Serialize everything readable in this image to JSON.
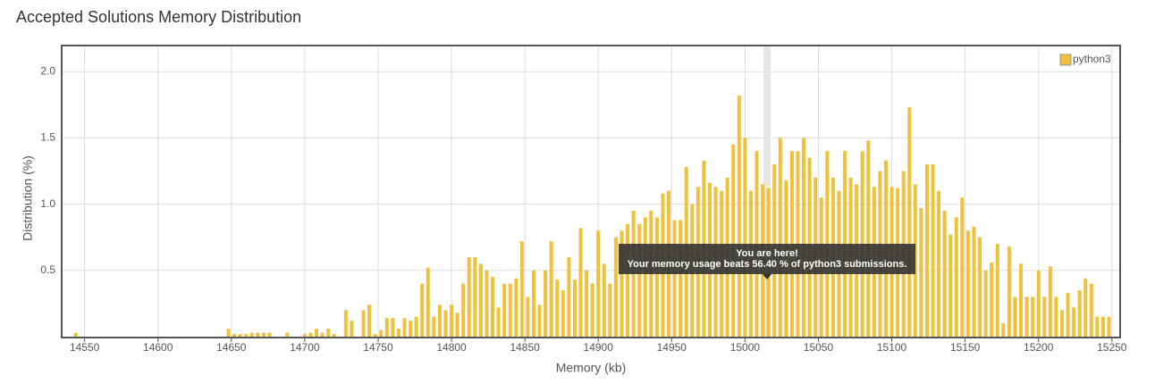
{
  "chart_data": {
    "type": "bar",
    "title": "Accepted Solutions Memory Distribution",
    "x_label": "Memory (kb)",
    "y_label": "Distribution (%)",
    "xlim": [
      14535,
      15255
    ],
    "ylim": [
      0,
      2.19
    ],
    "xticks": [
      14550,
      14600,
      14650,
      14700,
      14750,
      14800,
      14850,
      14900,
      14950,
      15000,
      15050,
      15100,
      15150,
      15200,
      15250
    ],
    "yticks": [
      0.5,
      {
        "value": 1,
        "label": "1.0"
      },
      1.5,
      {
        "value": 2,
        "label": "2.0"
      }
    ],
    "grid": true,
    "legend": "top-right",
    "series": [
      {
        "name": "python3",
        "color": "#efc13d",
        "x": [
          14544,
          14548,
          14552,
          14556,
          14560,
          14564,
          14568,
          14572,
          14576,
          14580,
          14584,
          14588,
          14592,
          14596,
          14600,
          14604,
          14608,
          14612,
          14616,
          14620,
          14624,
          14628,
          14632,
          14636,
          14640,
          14644,
          14648,
          14652,
          14656,
          14660,
          14664,
          14668,
          14672,
          14676,
          14680,
          14684,
          14688,
          14692,
          14696,
          14700,
          14704,
          14708,
          14712,
          14716,
          14720,
          14724,
          14728,
          14732,
          14736,
          14740,
          14744,
          14748,
          14752,
          14756,
          14760,
          14764,
          14768,
          14772,
          14776,
          14780,
          14784,
          14788,
          14792,
          14796,
          14800,
          14804,
          14808,
          14812,
          14816,
          14820,
          14824,
          14828,
          14832,
          14836,
          14840,
          14844,
          14848,
          14852,
          14856,
          14860,
          14864,
          14868,
          14872,
          14876,
          14880,
          14884,
          14888,
          14892,
          14896,
          14900,
          14904,
          14908,
          14912,
          14916,
          14920,
          14924,
          14928,
          14932,
          14936,
          14940,
          14944,
          14948,
          14952,
          14956,
          14960,
          14964,
          14968,
          14972,
          14976,
          14980,
          14984,
          14988,
          14992,
          14996,
          15000,
          15004,
          15008,
          15012,
          15016,
          15020,
          15024,
          15028,
          15032,
          15036,
          15040,
          15044,
          15048,
          15052,
          15056,
          15060,
          15064,
          15068,
          15072,
          15076,
          15080,
          15084,
          15088,
          15092,
          15096,
          15100,
          15104,
          15108,
          15112,
          15116,
          15120,
          15124,
          15128,
          15132,
          15136,
          15140,
          15144,
          15148,
          15152,
          15156,
          15160,
          15164,
          15168,
          15172,
          15176,
          15180,
          15184,
          15188,
          15192,
          15196,
          15200,
          15204,
          15208,
          15212,
          15216,
          15220,
          15224,
          15228,
          15232,
          15236,
          15240,
          15244,
          15248
        ],
        "values": [
          0.03,
          0,
          0,
          0,
          0,
          0,
          0,
          0,
          0,
          0,
          0,
          0,
          0,
          0,
          0,
          0,
          0,
          0,
          0,
          0,
          0,
          0,
          0,
          0,
          0,
          0,
          0.06,
          0.02,
          0.02,
          0.02,
          0.03,
          0.03,
          0.03,
          0.03,
          0,
          0,
          0.03,
          0,
          0,
          0.02,
          0.03,
          0.06,
          0.03,
          0.06,
          0.02,
          0,
          0.2,
          0.12,
          0,
          0.2,
          0.24,
          0.02,
          0.05,
          0.14,
          0.14,
          0.06,
          0.14,
          0.12,
          0.15,
          0.4,
          0.52,
          0.15,
          0.24,
          0.2,
          0.24,
          0.18,
          0.4,
          0.6,
          0.6,
          0.55,
          0.5,
          0.45,
          0.22,
          0.4,
          0.4,
          0.44,
          0.72,
          0.3,
          0.5,
          0.24,
          0.5,
          0.72,
          0.43,
          0.35,
          0.6,
          0.43,
          0.82,
          0.5,
          0.4,
          0.8,
          0.55,
          0.4,
          0.75,
          0.8,
          0.85,
          0.95,
          0.85,
          0.9,
          0.95,
          0.9,
          1.08,
          1.1,
          0.88,
          0.88,
          1.28,
          1.0,
          1.13,
          1.33,
          1.16,
          1.13,
          1.1,
          1.2,
          1.45,
          1.82,
          1.5,
          1.1,
          1.4,
          1.15,
          1.12,
          1.3,
          1.5,
          1.18,
          1.4,
          1.4,
          1.5,
          1.35,
          1.2,
          1.05,
          1.4,
          1.2,
          1.1,
          1.4,
          1.2,
          1.15,
          1.4,
          1.48,
          1.13,
          1.25,
          1.33,
          1.13,
          1.12,
          1.25,
          1.73,
          1.15,
          0.97,
          1.3,
          1.3,
          1.1,
          0.95,
          0.77,
          0.9,
          1.05,
          0.8,
          0.83,
          0.75,
          0.5,
          0.56,
          0.7,
          0.1,
          0.68,
          0.3,
          0.55,
          0.3,
          0.3,
          0.5,
          0.3,
          0.53,
          0.3,
          0.2,
          0.33,
          0.22,
          0.35,
          0.44,
          0.4,
          0.15,
          0.15,
          0.15
        ]
      }
    ],
    "highlight": 15015,
    "tooltip": {
      "title": "You are here!",
      "text": "Your memory usage beats 56.40 % of python3 submissions."
    }
  }
}
